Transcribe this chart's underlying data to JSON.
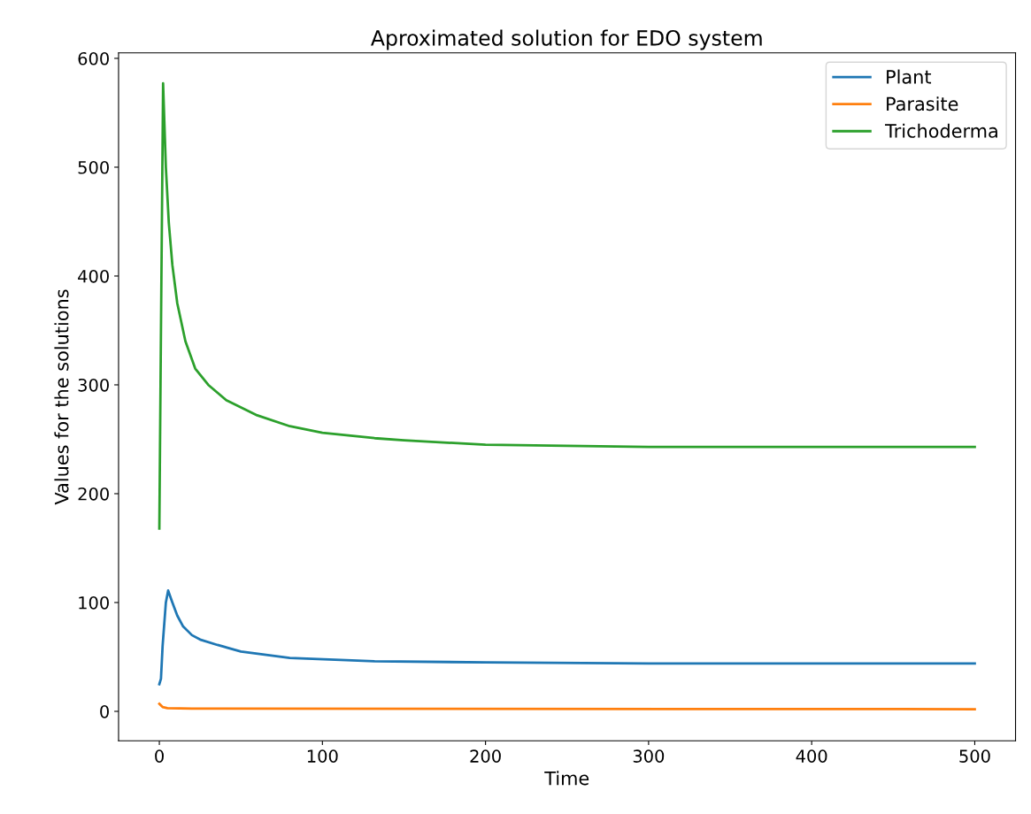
{
  "chart_data": {
    "type": "line",
    "title": "Aproximated solution for EDO system",
    "xlabel": "Time",
    "ylabel": "Values for the solutions",
    "xlim": [
      -25,
      525
    ],
    "ylim": [
      -27,
      605
    ],
    "xticks": [
      0,
      100,
      200,
      300,
      400,
      500
    ],
    "yticks": [
      0,
      100,
      200,
      300,
      400,
      500,
      600
    ],
    "legend": "top right",
    "grid": false,
    "series": [
      {
        "name": "Plant",
        "color": "#1f77b4",
        "x": [
          0,
          1,
          2,
          4,
          5.4,
          8,
          11,
          14.6,
          20,
          25,
          35.7,
          50,
          80,
          132,
          200,
          300,
          500
        ],
        "values": [
          25,
          30,
          60,
          100,
          111,
          100,
          88,
          78,
          70,
          66,
          61,
          55,
          49,
          46,
          45,
          44,
          44
        ]
      },
      {
        "name": "Parasite",
        "color": "#ff7f0e",
        "x": [
          0,
          2,
          5,
          20,
          500
        ],
        "values": [
          7,
          4,
          3,
          2.5,
          2
        ]
      },
      {
        "name": "Trichoderma",
        "color": "#2ca02c",
        "x": [
          0,
          1,
          2.3,
          4,
          5.8,
          8,
          11,
          16,
          22,
          30,
          41,
          60,
          80,
          100,
          132,
          150,
          200,
          250,
          300,
          400,
          500
        ],
        "values": [
          168,
          350,
          577,
          500,
          449,
          410,
          375,
          340,
          315,
          300,
          286,
          272,
          262,
          256,
          251,
          249,
          245,
          244,
          243,
          243,
          243
        ]
      }
    ]
  }
}
